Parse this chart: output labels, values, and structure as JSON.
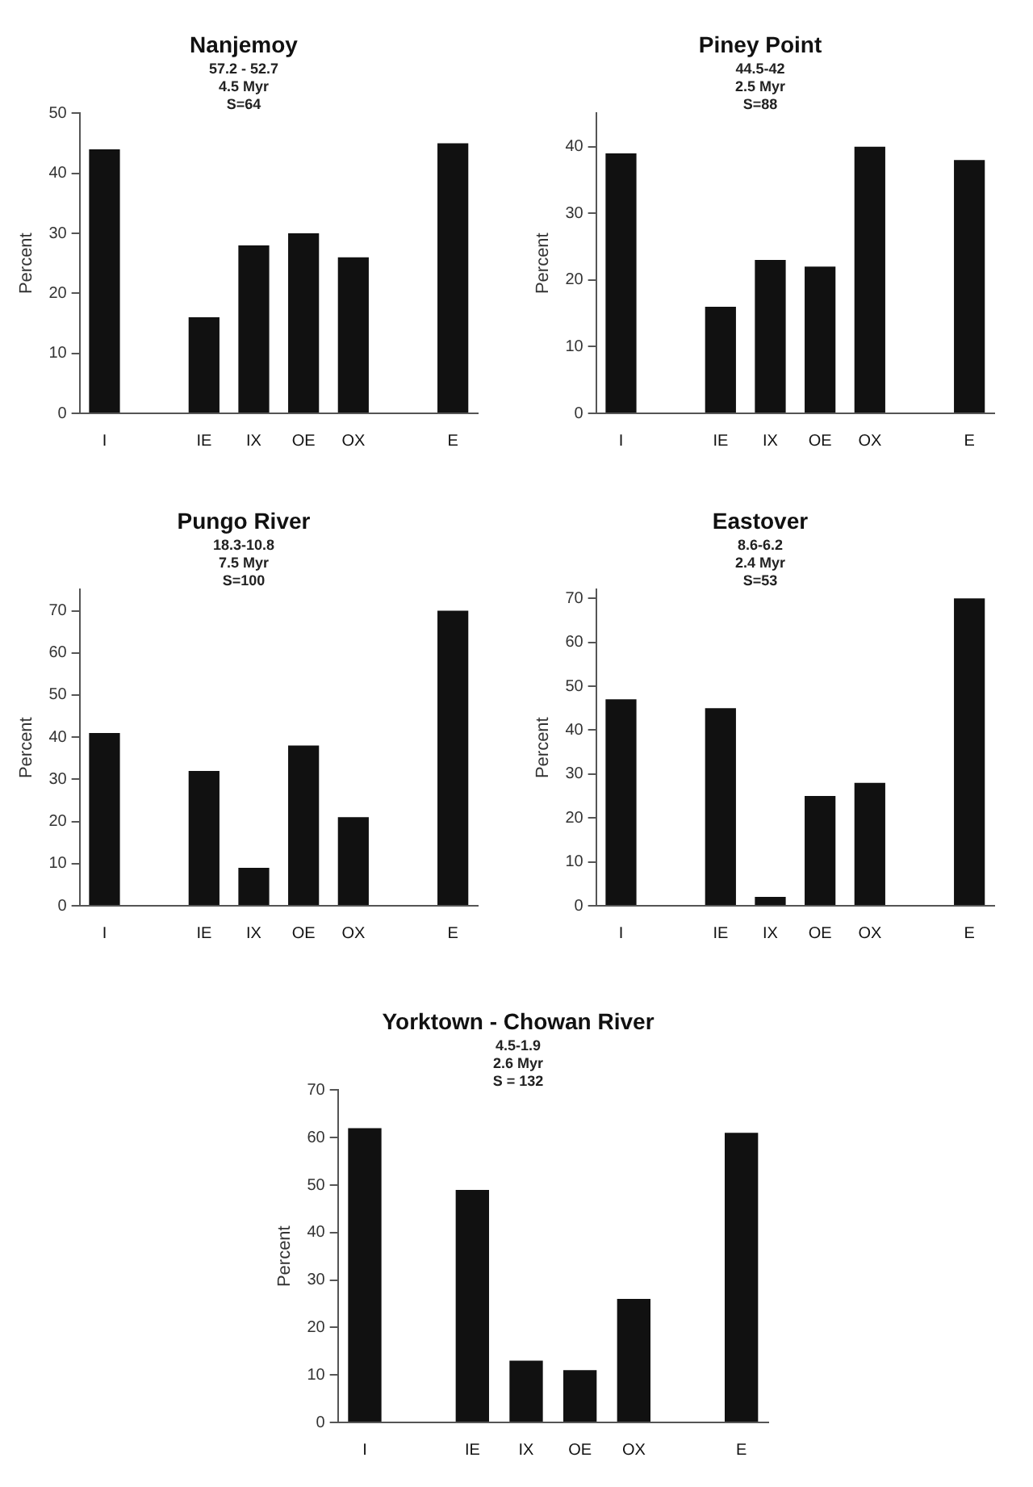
{
  "chart_data": [
    {
      "type": "bar",
      "title": "Nanjemoy",
      "subtitle": "57.2 - 52.7\n4.5 Myr\nS=64",
      "ylabel": "Percent",
      "categories": [
        "I",
        null,
        "IE",
        "IX",
        "OE",
        "OX",
        null,
        "E"
      ],
      "values": [
        44,
        null,
        16,
        28,
        30,
        26,
        null,
        45
      ],
      "color": "#111111",
      "ylim": [
        0,
        50
      ],
      "yticks": [
        0,
        10,
        20,
        30,
        40,
        50
      ],
      "grid": false
    },
    {
      "type": "bar",
      "title": "Piney Point",
      "subtitle": "44.5-42\n2.5 Myr\nS=88",
      "ylabel": "Percent",
      "categories": [
        "I",
        null,
        "IE",
        "IX",
        "OE",
        "OX",
        null,
        "E"
      ],
      "values": [
        39,
        null,
        16,
        23,
        22,
        40,
        null,
        38
      ],
      "color": "#111111",
      "ylim": [
        0,
        45
      ],
      "yticks": [
        0,
        10,
        20,
        30,
        40
      ],
      "grid": false
    },
    {
      "type": "bar",
      "title": "Pungo River",
      "subtitle": "18.3-10.8\n7.5 Myr\nS=100",
      "ylabel": "Percent",
      "categories": [
        "I",
        null,
        "IE",
        "IX",
        "OE",
        "OX",
        null,
        "E"
      ],
      "values": [
        41,
        null,
        32,
        9,
        38,
        21,
        null,
        70
      ],
      "color": "#111111",
      "ylim": [
        0,
        75
      ],
      "yticks": [
        0,
        10,
        20,
        30,
        40,
        50,
        60,
        70
      ],
      "grid": false
    },
    {
      "type": "bar",
      "title": "Eastover",
      "subtitle": "8.6-6.2\n2.4 Myr\nS=53",
      "ylabel": "Percent",
      "categories": [
        "I",
        null,
        "IE",
        "IX",
        "OE",
        "OX",
        null,
        "E"
      ],
      "values": [
        47,
        null,
        45,
        2,
        25,
        28,
        null,
        70
      ],
      "color": "#111111",
      "ylim": [
        0,
        72
      ],
      "yticks": [
        0,
        10,
        20,
        30,
        40,
        50,
        60,
        70
      ],
      "grid": false
    },
    {
      "type": "bar",
      "title": "Yorktown - Chowan River",
      "subtitle": "4.5-1.9\n2.6 Myr\nS = 132",
      "ylabel": "Percent",
      "categories": [
        "I",
        null,
        "IE",
        "IX",
        "OE",
        "OX",
        null,
        "E"
      ],
      "values": [
        62,
        null,
        49,
        13,
        11,
        26,
        null,
        61
      ],
      "color": "#111111",
      "ylim": [
        0,
        70
      ],
      "yticks": [
        0,
        10,
        20,
        30,
        40,
        50,
        60,
        70
      ],
      "grid": false
    }
  ]
}
